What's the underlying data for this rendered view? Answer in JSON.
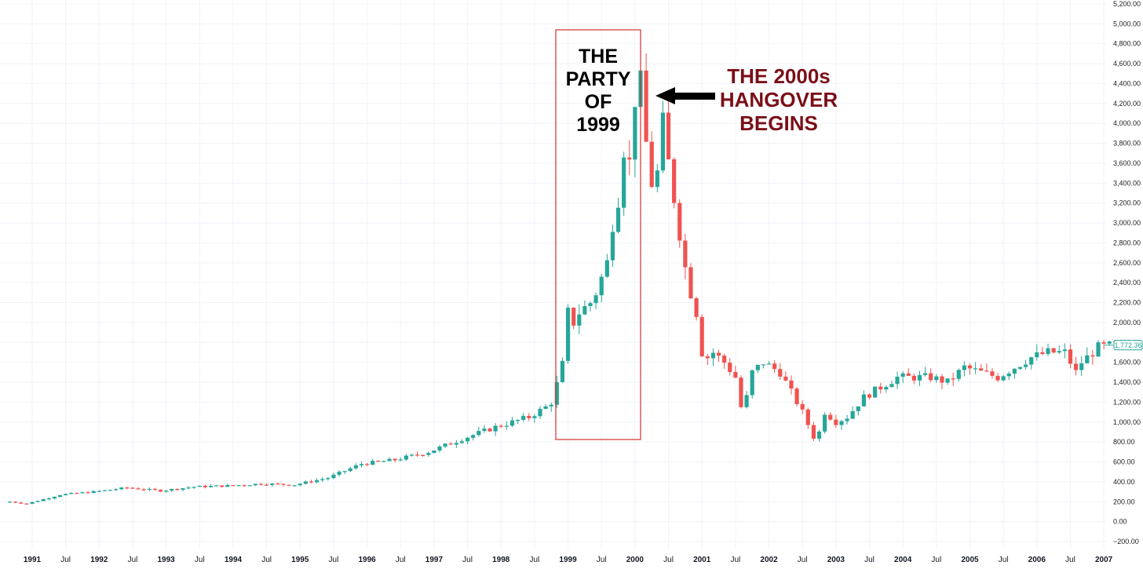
{
  "chart_data": {
    "type": "candlestick",
    "interval": "monthly",
    "ylim": [
      -200,
      5200
    ],
    "y_tick_labels": [
      "−200.00",
      "0.00",
      "200.00",
      "400.00",
      "600.00",
      "800.00",
      "1,000.00",
      "1,200.00",
      "1,400.00",
      "1,600.00",
      "1,800.00",
      "2,000.00",
      "2,200.00",
      "2,400.00",
      "2,600.00",
      "2,800.00",
      "3,000.00",
      "3,200.00",
      "3,400.00",
      "3,600.00",
      "3,800.00",
      "4,000.00",
      "4,200.00",
      "4,400.00",
      "4,600.00",
      "4,800.00",
      "5,000.00",
      "5,200.00"
    ],
    "x_tick_labels": [
      {
        "date": "1991-01",
        "label": "1991",
        "year": true
      },
      {
        "date": "1991-07",
        "label": "Jul",
        "year": false
      },
      {
        "date": "1992-01",
        "label": "1992",
        "year": true
      },
      {
        "date": "1992-07",
        "label": "Jul",
        "year": false
      },
      {
        "date": "1993-01",
        "label": "1993",
        "year": true
      },
      {
        "date": "1993-07",
        "label": "Jul",
        "year": false
      },
      {
        "date": "1994-01",
        "label": "1994",
        "year": true
      },
      {
        "date": "1994-07",
        "label": "Jul",
        "year": false
      },
      {
        "date": "1995-01",
        "label": "1995",
        "year": true
      },
      {
        "date": "1995-07",
        "label": "Jul",
        "year": false
      },
      {
        "date": "1996-01",
        "label": "1996",
        "year": true
      },
      {
        "date": "1996-07",
        "label": "Jul",
        "year": false
      },
      {
        "date": "1997-01",
        "label": "1997",
        "year": true
      },
      {
        "date": "1997-07",
        "label": "Jul",
        "year": false
      },
      {
        "date": "1998-01",
        "label": "1998",
        "year": true
      },
      {
        "date": "1998-07",
        "label": "Jul",
        "year": false
      },
      {
        "date": "1999-01",
        "label": "1999",
        "year": true
      },
      {
        "date": "1999-07",
        "label": "Jul",
        "year": false
      },
      {
        "date": "2000-01",
        "label": "2000",
        "year": true
      },
      {
        "date": "2000-07",
        "label": "Jul",
        "year": false
      },
      {
        "date": "2001-01",
        "label": "2001",
        "year": true
      },
      {
        "date": "2001-07",
        "label": "Jul",
        "year": false
      },
      {
        "date": "2002-01",
        "label": "2002",
        "year": true
      },
      {
        "date": "2002-07",
        "label": "Jul",
        "year": false
      },
      {
        "date": "2003-01",
        "label": "2003",
        "year": true
      },
      {
        "date": "2003-07",
        "label": "Jul",
        "year": false
      },
      {
        "date": "2004-01",
        "label": "2004",
        "year": true
      },
      {
        "date": "2004-07",
        "label": "Jul",
        "year": false
      },
      {
        "date": "2005-01",
        "label": "2005",
        "year": true
      },
      {
        "date": "2005-07",
        "label": "Jul",
        "year": false
      },
      {
        "date": "2006-01",
        "label": "2006",
        "year": true
      },
      {
        "date": "2006-07",
        "label": "Jul",
        "year": false
      },
      {
        "date": "2007-01",
        "label": "2007",
        "year": true
      }
    ],
    "last_price": 1772.36,
    "last_price_label": "1,772.36",
    "colors": {
      "up": "#26a69a",
      "down": "#ef5350",
      "grid": "#f0f3fa",
      "highlight_box": "#d32f2f",
      "annotation_right": "#7a0f17",
      "arrow": "#000000"
    },
    "grid": true,
    "anchor_points": [
      [
        "1990-09",
        200
      ],
      [
        "1990-12",
        180
      ],
      [
        "1991-06",
        270
      ],
      [
        "1991-12",
        300
      ],
      [
        "1992-06",
        340
      ],
      [
        "1992-12",
        310
      ],
      [
        "1993-06",
        350
      ],
      [
        "1993-12",
        360
      ],
      [
        "1994-06",
        380
      ],
      [
        "1994-12",
        370
      ],
      [
        "1995-06",
        440
      ],
      [
        "1995-12",
        580
      ],
      [
        "1996-06",
        620
      ],
      [
        "1996-12",
        700
      ],
      [
        "1997-06",
        830
      ],
      [
        "1997-12",
        950
      ],
      [
        "1998-06",
        1050
      ],
      [
        "1998-09",
        1150
      ],
      [
        "1998-10",
        1200
      ],
      [
        "1998-11",
        1380
      ],
      [
        "1998-12",
        1580
      ],
      [
        "1999-01",
        2100
      ],
      [
        "1999-02",
        2000
      ],
      [
        "1999-03",
        2100
      ],
      [
        "1999-05",
        2200
      ],
      [
        "1999-06",
        2300
      ],
      [
        "1999-07",
        2450
      ],
      [
        "1999-08",
        2600
      ],
      [
        "1999-09",
        3000
      ],
      [
        "1999-10",
        3250
      ],
      [
        "1999-11",
        3750
      ],
      [
        "1999-12",
        3600
      ],
      [
        "2000-01",
        4250
      ],
      [
        "2000-02",
        4400
      ],
      [
        "2000-03",
        3800
      ],
      [
        "2000-04",
        3400
      ],
      [
        "2000-05",
        3500
      ],
      [
        "2000-06",
        4000
      ],
      [
        "2000-07",
        3600
      ],
      [
        "2000-08",
        3250
      ],
      [
        "2000-09",
        2900
      ],
      [
        "2000-10",
        2550
      ],
      [
        "2000-11",
        2300
      ],
      [
        "2000-12",
        2100
      ],
      [
        "2001-01",
        1700
      ],
      [
        "2001-02",
        1650
      ],
      [
        "2001-03",
        1700
      ],
      [
        "2001-05",
        1600
      ],
      [
        "2001-07",
        1450
      ],
      [
        "2001-08",
        1150
      ],
      [
        "2001-09",
        1250
      ],
      [
        "2001-10",
        1500
      ],
      [
        "2001-12",
        1600
      ],
      [
        "2002-03",
        1500
      ],
      [
        "2002-05",
        1300
      ],
      [
        "2002-07",
        1100
      ],
      [
        "2002-09",
        850
      ],
      [
        "2002-10",
        900
      ],
      [
        "2002-11",
        1100
      ],
      [
        "2003-01",
        1000
      ],
      [
        "2003-03",
        1050
      ],
      [
        "2003-06",
        1250
      ],
      [
        "2003-09",
        1350
      ],
      [
        "2003-12",
        1450
      ],
      [
        "2004-06",
        1450
      ],
      [
        "2004-09",
        1400
      ],
      [
        "2004-12",
        1550
      ],
      [
        "2005-03",
        1500
      ],
      [
        "2005-06",
        1450
      ],
      [
        "2005-09",
        1550
      ],
      [
        "2005-12",
        1650
      ],
      [
        "2006-03",
        1700
      ],
      [
        "2006-06",
        1700
      ],
      [
        "2006-08",
        1500
      ],
      [
        "2006-09",
        1600
      ],
      [
        "2006-12",
        1750
      ],
      [
        "2007-03",
        1772
      ]
    ],
    "annotation_left_lines": [
      "THE",
      "PARTY",
      "OF",
      "1999"
    ],
    "annotation_right_lines": [
      "THE 2000s",
      "HANGOVER",
      "BEGINS"
    ]
  }
}
